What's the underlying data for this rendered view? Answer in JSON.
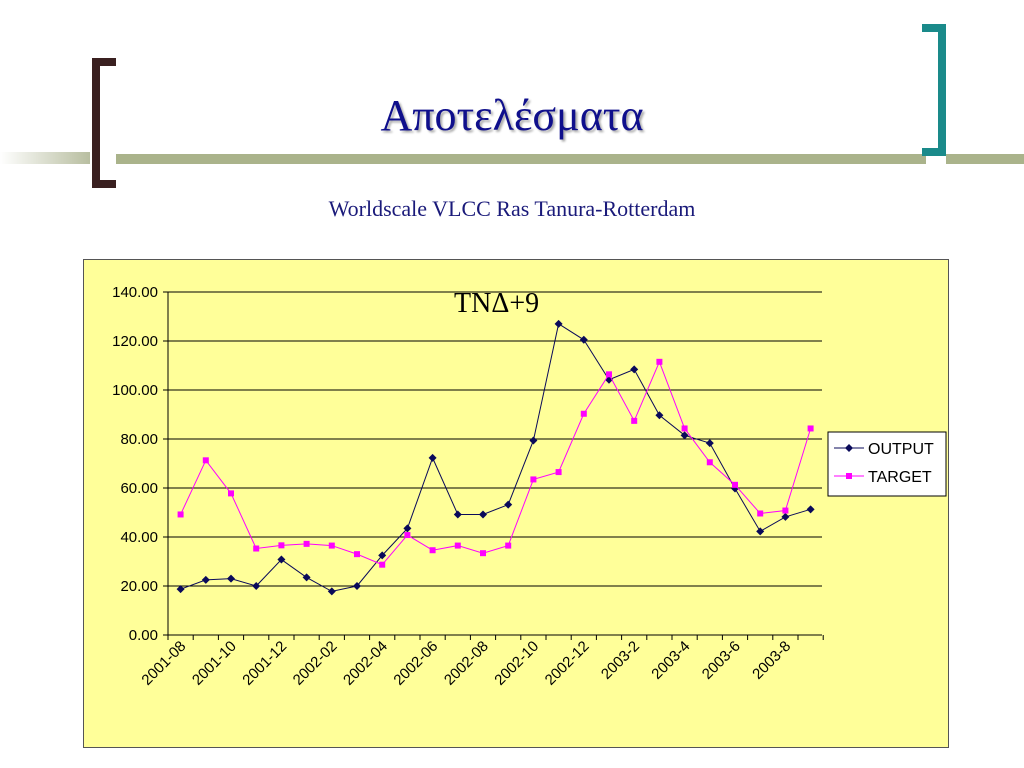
{
  "slide": {
    "title": "Αποτελέσματα",
    "subtitle": "Worldscale VLCC Ras Tanura-Rotterdam"
  },
  "colors": {
    "title": "#0f0f8c",
    "bracket_left": "#3a2020",
    "bracket_right": "#1a8a8a",
    "accent_bar": "#aab38b",
    "plot_background": "#ffff99",
    "output_series": "#0a0a5a",
    "target_series": "#ff00ff"
  },
  "chart_data": {
    "type": "line",
    "annotation": "TNΔ+9",
    "y_tick_labels": [
      "0.00",
      "20.00",
      "40.00",
      "60.00",
      "80.00",
      "100.00",
      "120.00",
      "140.00"
    ],
    "ylim": [
      0,
      140
    ],
    "grid": true,
    "legend_position": "right",
    "x_tick_labels": [
      "2001-08",
      "2001-10",
      "2001-12",
      "2002-02",
      "2002-04",
      "2002-06",
      "2002-08",
      "2002-10",
      "2002-12",
      "2003-2",
      "2003-4",
      "2003-6",
      "2003-8"
    ],
    "x": [
      "2001-08",
      "2001-09",
      "2001-10",
      "2001-11",
      "2001-12",
      "2002-01",
      "2002-02",
      "2002-03",
      "2002-04",
      "2002-05",
      "2002-06",
      "2002-07",
      "2002-08",
      "2002-09",
      "2002-10",
      "2002-11",
      "2002-12",
      "2003-1",
      "2003-2",
      "2003-3",
      "2003-4",
      "2003-5",
      "2003-6",
      "2003-7",
      "2003-8",
      "2003-9"
    ],
    "series": [
      {
        "name": "OUTPUT",
        "marker": "diamond",
        "values": [
          18.7,
          22.5,
          23.0,
          20.0,
          30.8,
          23.5,
          17.8,
          20.0,
          32.5,
          43.5,
          72.3,
          49.2,
          49.2,
          53.2,
          79.4,
          127.0,
          120.5,
          104.2,
          108.4,
          89.7,
          81.5,
          78.3,
          59.8,
          42.3,
          48.2,
          51.3
        ]
      },
      {
        "name": "TARGET",
        "marker": "square",
        "values": [
          49.2,
          71.3,
          57.8,
          35.3,
          36.6,
          37.2,
          36.5,
          33.0,
          28.7,
          40.8,
          34.6,
          36.5,
          33.4,
          36.5,
          63.5,
          66.5,
          90.3,
          106.4,
          87.4,
          111.5,
          84.3,
          70.5,
          61.3,
          49.6,
          50.8,
          84.3
        ]
      }
    ]
  }
}
